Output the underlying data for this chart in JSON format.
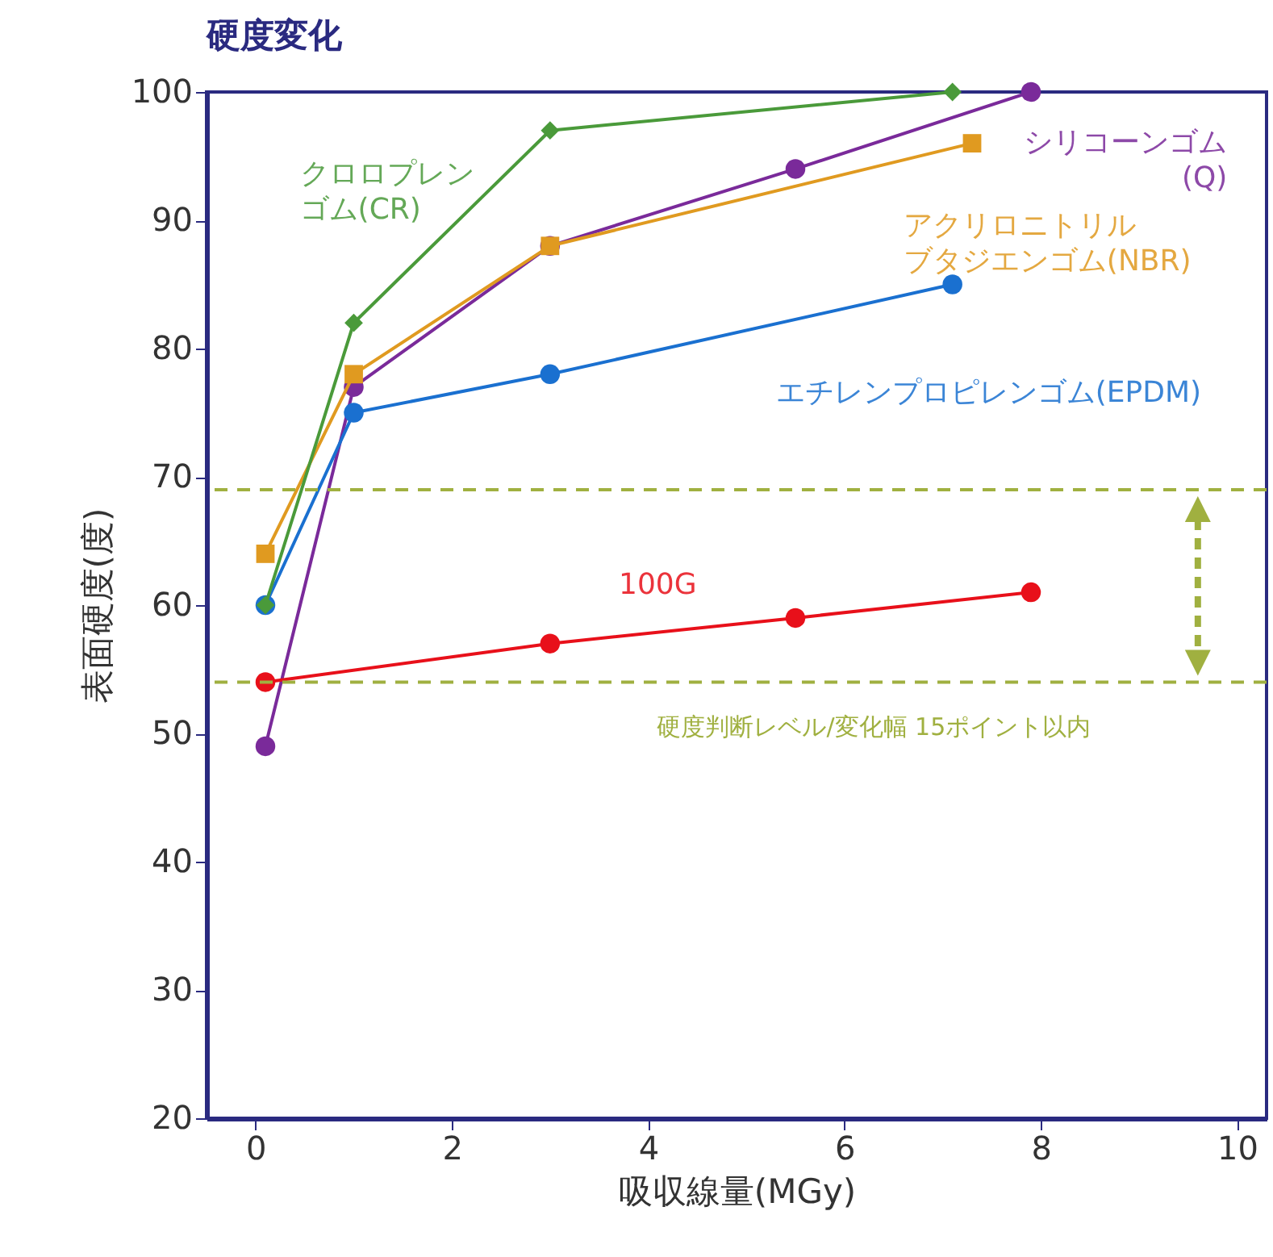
{
  "chart_data": {
    "type": "line",
    "title": "硬度変化",
    "xlabel": "吸収線量(MGy)",
    "ylabel": "表面硬度(度)",
    "xlim": [
      -0.5,
      10.3
    ],
    "xticks": [
      {
        "value": 0,
        "label": "0"
      },
      {
        "value": 2,
        "label": "2"
      },
      {
        "value": 4,
        "label": "4"
      },
      {
        "value": 6,
        "label": "6"
      },
      {
        "value": 8,
        "label": "8"
      },
      {
        "value": 10,
        "label": "10"
      }
    ],
    "ylim": [
      20,
      100
    ],
    "yticks": [
      20,
      30,
      40,
      50,
      60,
      70,
      80,
      90,
      100
    ],
    "grid": false,
    "legend": false,
    "line_style": "solid",
    "series": [
      {
        "name": "クロロプレンゴム(CR)",
        "color": "#4a9a3a",
        "marker": "diamond",
        "x": [
          0.1,
          1,
          3,
          7.1
        ],
        "values": [
          60,
          82,
          97,
          100
        ]
      },
      {
        "name": "シリコーンゴム(Q)",
        "color": "#7a2a9a",
        "marker": "circle",
        "x": [
          0.1,
          1,
          3,
          5.5,
          7.9
        ],
        "values": [
          49,
          77,
          88,
          94,
          100
        ]
      },
      {
        "name": "アクリロニトリルブタジエンゴム(NBR)",
        "color": "#e09a20",
        "marker": "square",
        "x": [
          0.1,
          1,
          3,
          7.3
        ],
        "values": [
          64,
          78,
          88,
          96
        ]
      },
      {
        "name": "エチレンプロピレンゴム(EPDM)",
        "color": "#1a70d0",
        "marker": "circle",
        "x": [
          0.1,
          1,
          3,
          7.1
        ],
        "values": [
          60,
          75,
          78,
          85
        ]
      },
      {
        "name": "100G",
        "color": "#e8101a",
        "marker": "circle",
        "x": [
          0.1,
          3,
          5.5,
          7.9
        ],
        "values": [
          54,
          57,
          59,
          61
        ]
      }
    ],
    "ref_lines": [
      {
        "axis": "y",
        "value": 69,
        "color": "#a0b040",
        "line_style": "dashed"
      },
      {
        "axis": "y",
        "value": 54,
        "color": "#a0b040",
        "line_style": "dashed"
      }
    ],
    "annotations": [
      "硬度判断レベル/変化幅 15ポイント以内"
    ]
  }
}
